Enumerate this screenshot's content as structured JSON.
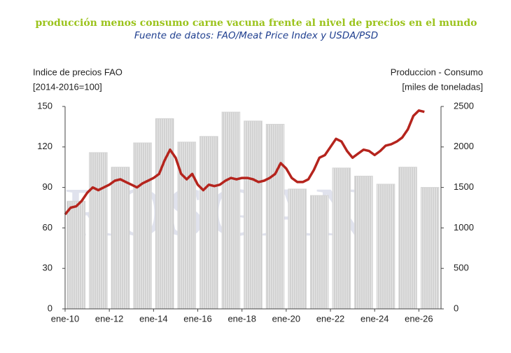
{
  "chart_data": {
    "type": "combo",
    "title": "producción menos consumo carne vacuna frente al nivel de precios en el mundo",
    "title_color": "#9bc31c",
    "subtitle": "Fuente de datos: FAO/Meat Price Index y USDA/PSD",
    "subtitle_color": "#1f3f8f",
    "y_label": [
      "Indice de precios FAO",
      "[2014-2016=100]"
    ],
    "y2_label": [
      "Produccion - Consumo",
      "[miles de toneladas]"
    ],
    "watermark": "ROSGAN",
    "xlim": [
      2010,
      2027
    ],
    "xticks": [
      {
        "value": 2010,
        "label": "ene-10"
      },
      {
        "value": 2012,
        "label": "ene-12"
      },
      {
        "value": 2014,
        "label": "ene-14"
      },
      {
        "value": 2016,
        "label": "ene-16"
      },
      {
        "value": 2018,
        "label": "ene-18"
      },
      {
        "value": 2020,
        "label": "ene-20"
      },
      {
        "value": 2022,
        "label": "ene-22"
      },
      {
        "value": 2024,
        "label": "ene-24"
      },
      {
        "value": 2026,
        "label": "ene-26"
      }
    ],
    "ylim": [
      0,
      150
    ],
    "yticks": [
      0,
      30,
      60,
      90,
      120,
      150
    ],
    "y2lim": [
      0,
      2500
    ],
    "y2ticks": [
      0,
      500,
      1000,
      1500,
      2000,
      2500
    ],
    "series": [
      {
        "type": "bar",
        "axis": "y2",
        "color": "#d4d4d4",
        "x": [
          2010,
          2011,
          2012,
          2013,
          2014,
          2015,
          2016,
          2017,
          2018,
          2019,
          2020,
          2021,
          2022,
          2023,
          2024,
          2025,
          2026
        ],
        "values": [
          1330,
          1930,
          1750,
          2050,
          2350,
          2060,
          2130,
          2430,
          2320,
          2280,
          1480,
          1400,
          1740,
          1640,
          1540,
          1750,
          1500
        ]
      },
      {
        "type": "line",
        "color": "#b5241d",
        "x": [
          2010,
          2010.25,
          2010.5,
          2010.75,
          2011,
          2011.25,
          2011.5,
          2011.75,
          2012,
          2012.25,
          2012.5,
          2012.75,
          2013,
          2013.25,
          2013.5,
          2013.75,
          2014,
          2014.25,
          2014.5,
          2014.75,
          2015,
          2015.25,
          2015.5,
          2015.75,
          2016,
          2016.25,
          2016.5,
          2016.75,
          2017,
          2017.25,
          2017.5,
          2017.75,
          2018,
          2018.25,
          2018.5,
          2018.75,
          2019,
          2019.25,
          2019.5,
          2019.75,
          2020,
          2020.25,
          2020.5,
          2020.75,
          2021,
          2021.25,
          2021.5,
          2021.75,
          2022,
          2022.25,
          2022.5,
          2022.75,
          2023,
          2023.25,
          2023.5,
          2023.75,
          2024,
          2024.25,
          2024.5,
          2024.75,
          2025,
          2025.25,
          2025.5,
          2025.75,
          2026,
          2026.25
        ],
        "values": [
          70,
          75,
          76,
          80,
          86,
          90,
          88,
          90,
          92,
          95,
          96,
          94,
          92,
          90,
          93,
          95,
          97,
          100,
          110,
          118,
          112,
          100,
          96,
          100,
          92,
          88,
          92,
          91,
          92,
          95,
          97,
          96,
          97,
          97,
          96,
          94,
          95,
          97,
          100,
          108,
          104,
          97,
          94,
          94,
          96,
          103,
          112,
          114,
          120,
          126,
          124,
          117,
          112,
          115,
          118,
          117,
          114,
          117,
          121,
          122,
          124,
          127,
          133,
          143,
          147,
          146
        ]
      }
    ]
  }
}
